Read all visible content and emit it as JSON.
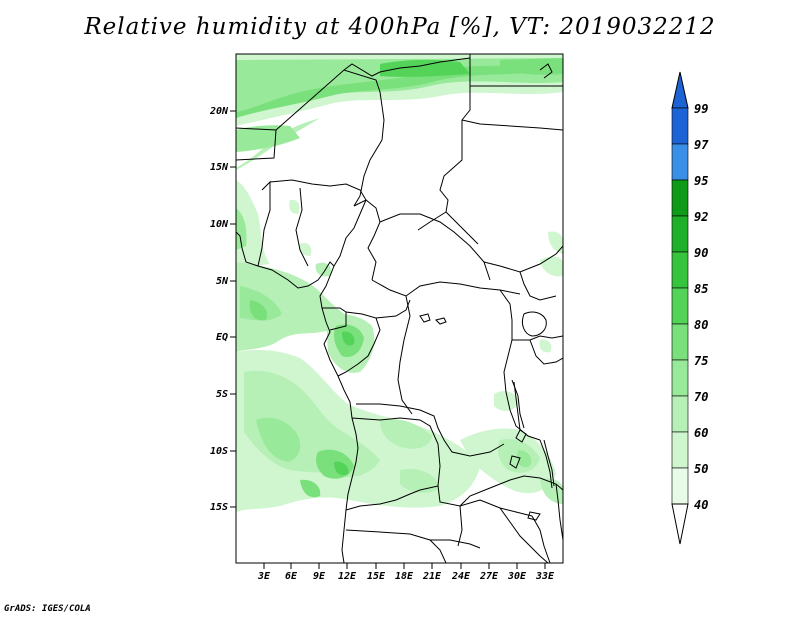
{
  "title": "Relative humidity at 400hPa [%], VT: 2019032212",
  "credit": "GrADS: IGES/COLA",
  "map": {
    "lat_labels": [
      "20N",
      "15N",
      "10N",
      "5N",
      "EQ",
      "5S",
      "10S",
      "15S"
    ],
    "lon_labels": [
      "3E",
      "6E",
      "9E",
      "12E",
      "15E",
      "18E",
      "21E",
      "24E",
      "27E",
      "30E",
      "33E"
    ]
  },
  "colorbar": {
    "labels": [
      "99",
      "97",
      "95",
      "92",
      "90",
      "85",
      "80",
      "75",
      "70",
      "60",
      "50",
      "40"
    ],
    "colors": {
      "bin_95_99": "#1c63d6",
      "bin_97_95": "#3a8fe6",
      "bin_92_95": "#0f9a17",
      "bin_90_92": "#1fb029",
      "bin_85_90": "#36c43c",
      "bin_80_85": "#53d458",
      "bin_75_80": "#79e07c",
      "bin_70_75": "#99e99b",
      "bin_60_70": "#b6f0b7",
      "bin_50_60": "#cff6cf",
      "bin_40_50": "#e8fbe8",
      "top_arrow": "#1c63d6",
      "bottom_arrow": "#ffffff"
    }
  }
}
